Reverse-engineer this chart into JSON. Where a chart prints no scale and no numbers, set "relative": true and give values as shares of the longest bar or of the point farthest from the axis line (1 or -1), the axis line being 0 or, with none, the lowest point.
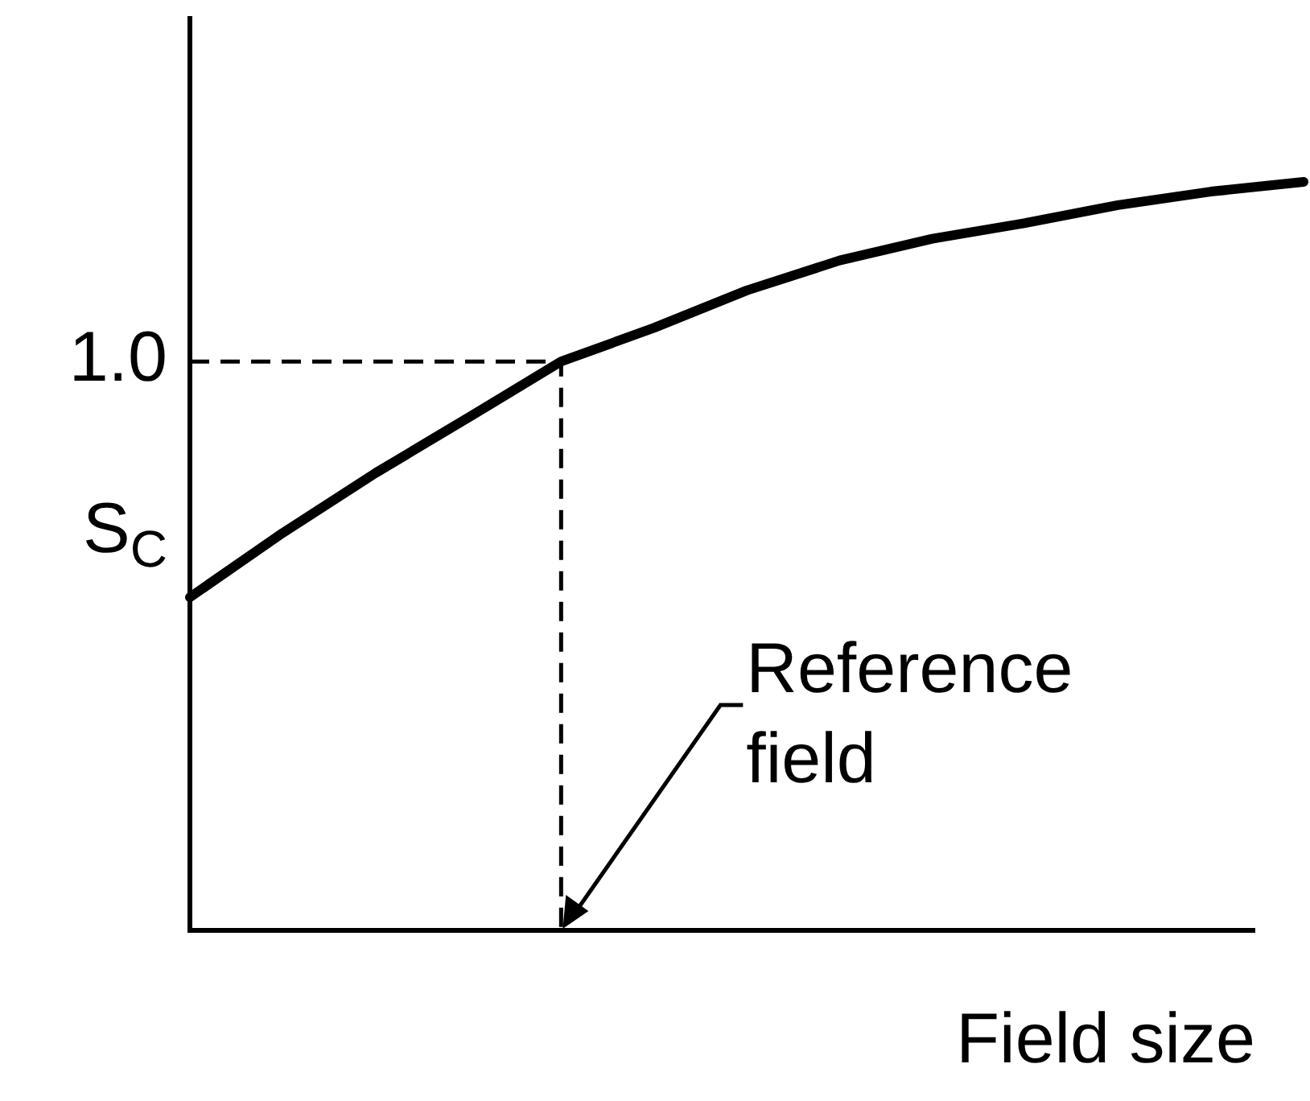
{
  "chart_data": {
    "type": "line",
    "relative": true,
    "xlabel": "Field size",
    "categories": [
      null,
      null,
      null,
      null,
      null,
      null,
      null,
      null,
      null,
      null,
      null,
      null,
      null
    ],
    "series": [
      {
        "color": "#000000",
        "values": [
          0.445,
          0.531,
          0.611,
          0.685,
          0.76,
          0.805,
          0.855,
          0.895,
          0.924,
          0.945,
          0.969,
          0.987,
          1
        ]
      }
    ],
    "legend": false,
    "marker": "none",
    "line_style": "solid",
    "ref_lines": [
      {
        "axis": "y",
        "value": 0.76,
        "line_style": "dashed",
        "color": "#000000"
      }
    ],
    "annotations": [
      "1.0",
      "S$_{C}$",
      "Reference field"
    ]
  }
}
